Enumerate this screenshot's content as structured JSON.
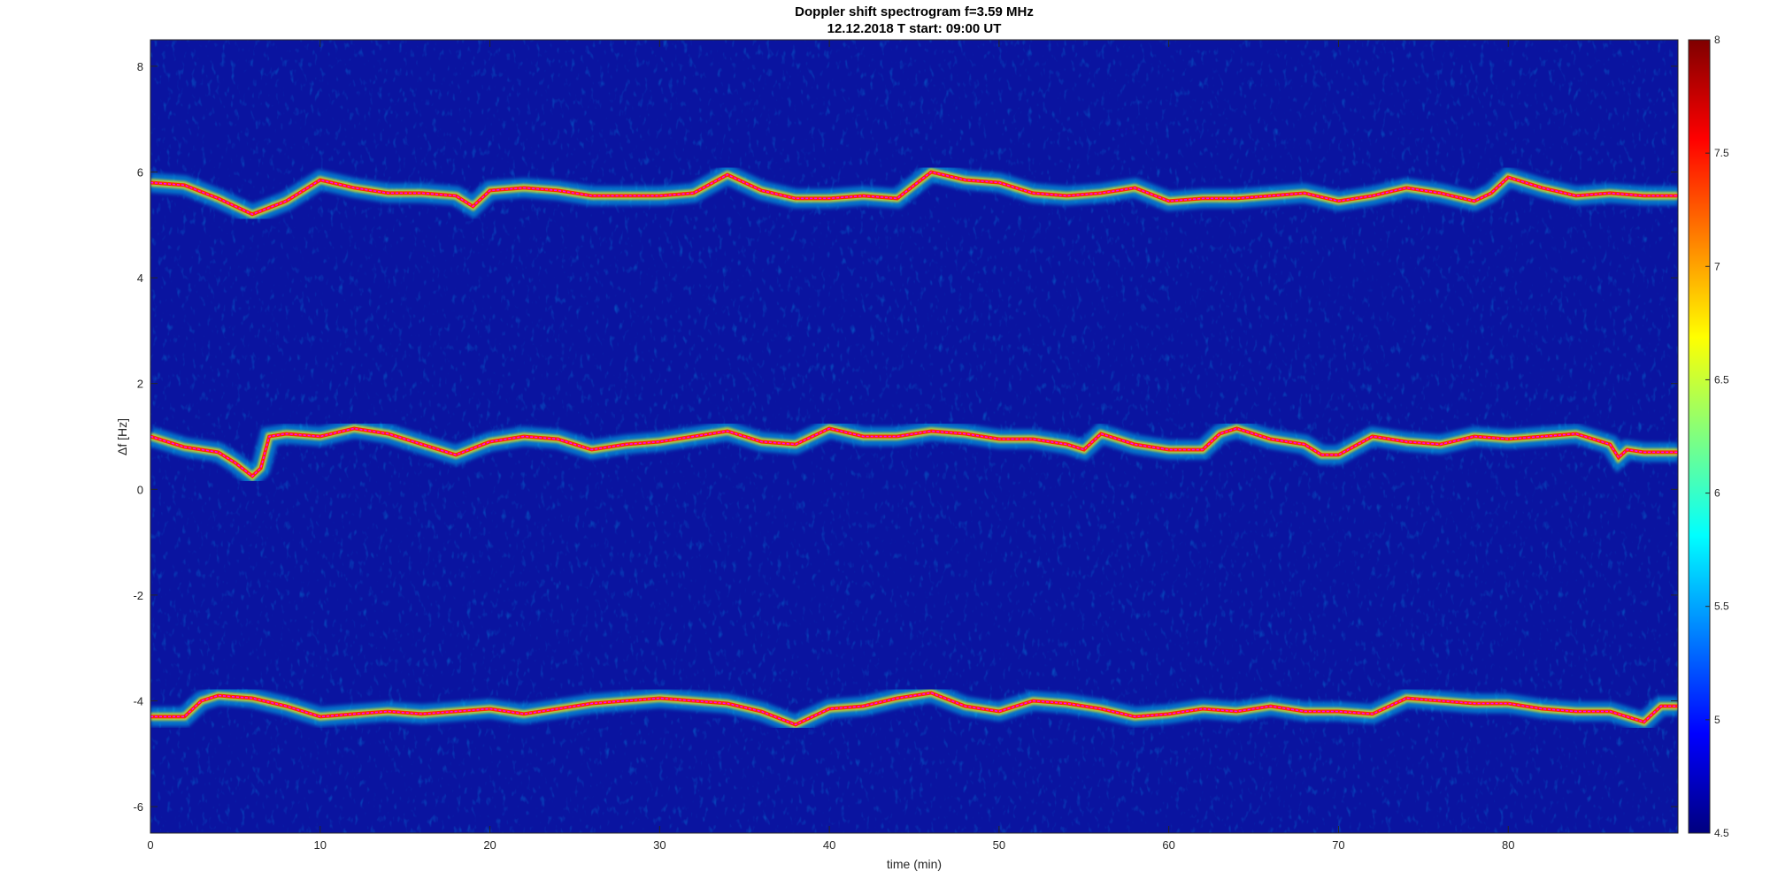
{
  "chart_data": {
    "type": "heatmap",
    "title": "Doppler shift spectrogram f=3.59 MHz",
    "subtitle": "12.12.2018   T start: 09:00 UT",
    "xlabel": "time (min)",
    "ylabel": "Δf [Hz]",
    "xlim": [
      0,
      90
    ],
    "ylim": [
      -6.5,
      8.5
    ],
    "xticks": [
      0,
      10,
      20,
      30,
      40,
      50,
      60,
      70,
      80
    ],
    "xtick_labels": [
      "0",
      "10",
      "20",
      "30",
      "40",
      "50",
      "60",
      "70",
      "80"
    ],
    "yticks": [
      -6,
      -4,
      -2,
      0,
      2,
      4,
      6,
      8
    ],
    "ytick_labels": [
      "-6",
      "-4",
      "-2",
      "0",
      "2",
      "4",
      "6",
      "8"
    ],
    "colorbar": {
      "colormap": "jet",
      "clim": [
        4.5,
        8
      ],
      "ticks": [
        4.5,
        5,
        5.5,
        6,
        6.5,
        7,
        7.5,
        8
      ],
      "tick_labels": [
        "4.5",
        "5",
        "5.5",
        "6",
        "6.5",
        "7",
        "7.5",
        "8"
      ]
    },
    "background_color": "#0a14a0",
    "trace_color": "#ff00ff",
    "series": [
      {
        "x": [
          0,
          2,
          4,
          6,
          8,
          10,
          12,
          14,
          16,
          18,
          19,
          20,
          22,
          24,
          26,
          28,
          30,
          32,
          34,
          36,
          38,
          40,
          42,
          44,
          46,
          48,
          50,
          52,
          54,
          56,
          58,
          60,
          62,
          64,
          66,
          68,
          70,
          72,
          74,
          76,
          78,
          79,
          80,
          82,
          84,
          86,
          88,
          90
        ],
        "y": [
          5.8,
          5.75,
          5.5,
          5.2,
          5.45,
          5.85,
          5.7,
          5.6,
          5.6,
          5.55,
          5.35,
          5.65,
          5.7,
          5.65,
          5.55,
          5.55,
          5.55,
          5.6,
          5.95,
          5.65,
          5.5,
          5.5,
          5.55,
          5.5,
          6.0,
          5.85,
          5.8,
          5.6,
          5.55,
          5.6,
          5.7,
          5.45,
          5.5,
          5.5,
          5.55,
          5.6,
          5.45,
          5.55,
          5.7,
          5.6,
          5.45,
          5.6,
          5.9,
          5.7,
          5.55,
          5.6,
          5.55,
          5.55
        ]
      },
      {
        "x": [
          0,
          2,
          4,
          5,
          6,
          6.5,
          7,
          8,
          10,
          12,
          14,
          16,
          18,
          20,
          22,
          24,
          26,
          28,
          30,
          32,
          34,
          36,
          38,
          40,
          42,
          44,
          46,
          48,
          50,
          52,
          54,
          55,
          56,
          58,
          60,
          62,
          63,
          64,
          66,
          68,
          69,
          70,
          72,
          74,
          76,
          78,
          80,
          82,
          84,
          86,
          86.5,
          87,
          88,
          90
        ],
        "y": [
          1.0,
          0.8,
          0.7,
          0.5,
          0.25,
          0.4,
          1.0,
          1.05,
          1.0,
          1.15,
          1.05,
          0.85,
          0.65,
          0.9,
          1.0,
          0.95,
          0.75,
          0.85,
          0.9,
          1.0,
          1.1,
          0.9,
          0.85,
          1.15,
          1.0,
          1.0,
          1.1,
          1.05,
          0.95,
          0.95,
          0.85,
          0.75,
          1.05,
          0.85,
          0.75,
          0.75,
          1.05,
          1.15,
          0.95,
          0.85,
          0.65,
          0.65,
          1.0,
          0.9,
          0.85,
          1.0,
          0.95,
          1.0,
          1.05,
          0.85,
          0.6,
          0.75,
          0.7,
          0.7
        ]
      },
      {
        "x": [
          0,
          2,
          3,
          4,
          6,
          8,
          10,
          12,
          14,
          16,
          18,
          20,
          22,
          24,
          26,
          28,
          30,
          32,
          34,
          36,
          38,
          40,
          42,
          44,
          46,
          48,
          50,
          52,
          54,
          56,
          58,
          60,
          62,
          64,
          66,
          68,
          70,
          72,
          74,
          76,
          78,
          80,
          82,
          84,
          86,
          88,
          89,
          90
        ],
        "y": [
          -4.3,
          -4.3,
          -4.0,
          -3.9,
          -3.95,
          -4.1,
          -4.3,
          -4.25,
          -4.2,
          -4.25,
          -4.2,
          -4.15,
          -4.25,
          -4.15,
          -4.05,
          -4.0,
          -3.95,
          -4.0,
          -4.05,
          -4.2,
          -4.45,
          -4.15,
          -4.1,
          -3.95,
          -3.85,
          -4.1,
          -4.2,
          -4.0,
          -4.05,
          -4.15,
          -4.3,
          -4.25,
          -4.15,
          -4.2,
          -4.1,
          -4.2,
          -4.2,
          -4.25,
          -3.95,
          -4.0,
          -4.05,
          -4.05,
          -4.15,
          -4.2,
          -4.2,
          -4.4,
          -4.1,
          -4.1
        ]
      }
    ]
  }
}
